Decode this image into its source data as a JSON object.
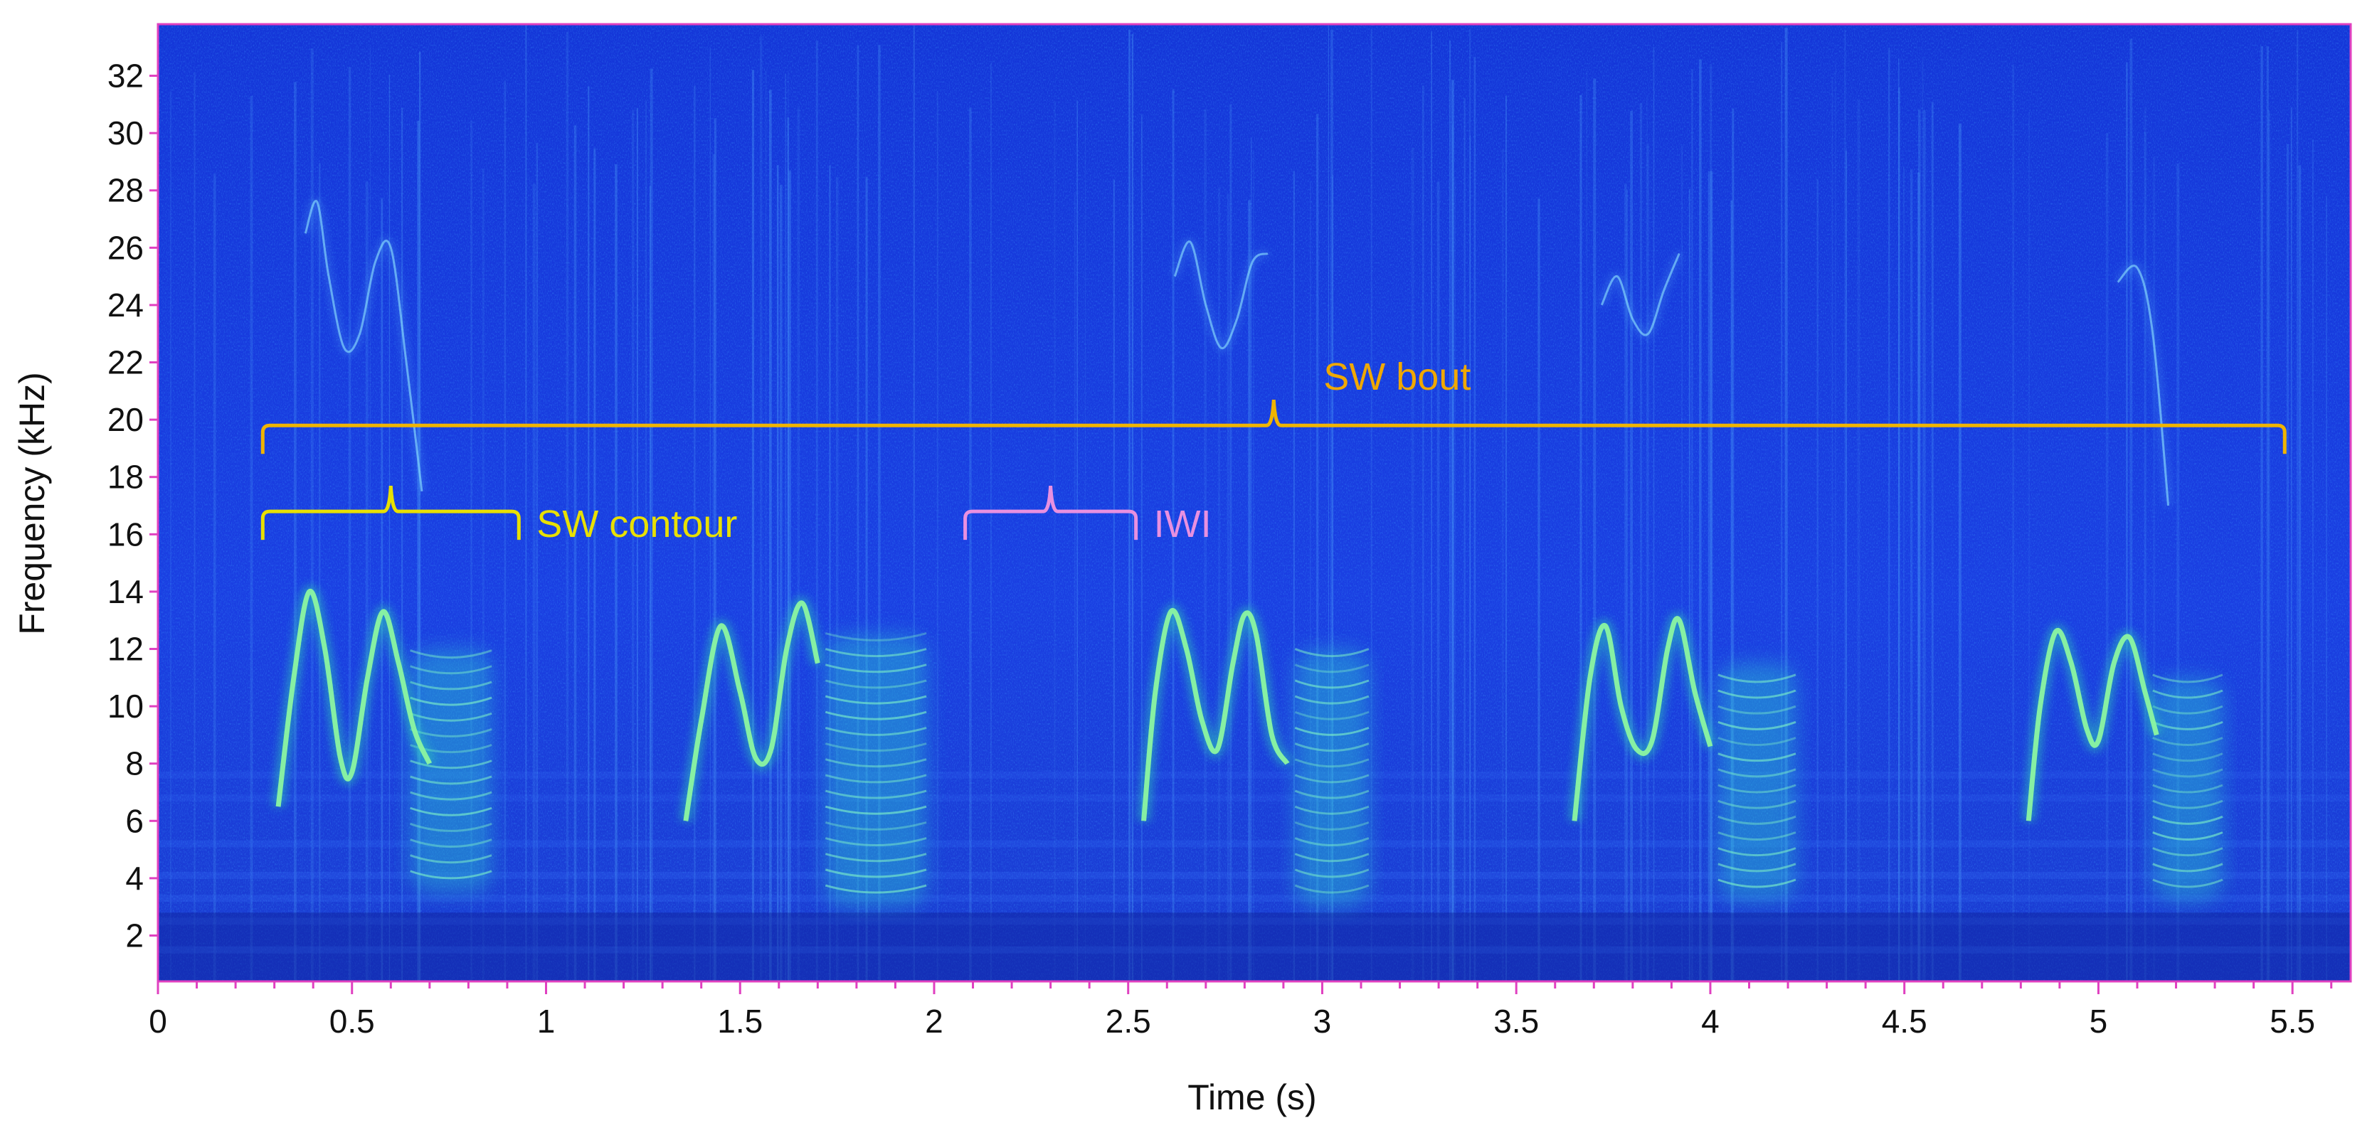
{
  "chart_data": {
    "type": "heatmap",
    "xlabel": "Time (s)",
    "ylabel": "Frequency (kHz)",
    "xlim": [
      0,
      5.65
    ],
    "ylim": [
      0.4,
      33.8
    ],
    "x_ticks": [
      0,
      0.5,
      1,
      1.5,
      2,
      2.5,
      3,
      3.5,
      4,
      4.5,
      5,
      5.5
    ],
    "x_tick_labels": [
      "0",
      "0.5",
      "1",
      "1.5",
      "2",
      "2.5",
      "3",
      "3.5",
      "4",
      "4.5",
      "5",
      "5.5"
    ],
    "y_ticks": [
      2,
      4,
      6,
      8,
      10,
      12,
      14,
      16,
      18,
      20,
      22,
      24,
      26,
      28,
      30,
      32
    ],
    "y_tick_labels": [
      "2",
      "4",
      "6",
      "8",
      "10",
      "12",
      "14",
      "16",
      "18",
      "20",
      "22",
      "24",
      "26",
      "28",
      "30",
      "32"
    ],
    "colors": {
      "background": "#1f3fe0",
      "axis_frame": "#e040c0",
      "bout_bracket": "#f0b400",
      "bout_text": "#f0a800",
      "contour_bracket": "#e8e000",
      "contour_text": "#e8e000",
      "iwi_bracket": "#e890e0",
      "iwi_text": "#e890e0"
    },
    "annotations": [
      {
        "label": "SW bout",
        "x_start": 0.27,
        "x_end": 5.48,
        "y": 19.8
      },
      {
        "label": "SW contour",
        "x_start": 0.27,
        "x_end": 0.93,
        "y": 16.8
      },
      {
        "label": "IWI",
        "x_start": 2.08,
        "x_end": 2.52,
        "y": 16.8
      }
    ],
    "whistles": [
      {
        "x": [
          0.31,
          0.35,
          0.39,
          0.43,
          0.47,
          0.5,
          0.54,
          0.58,
          0.62,
          0.66,
          0.7
        ],
        "y": [
          6.5,
          11,
          14,
          12,
          8.2,
          7.7,
          11,
          13.3,
          11.5,
          9.2,
          8
        ]
      },
      {
        "x": [
          1.36,
          1.4,
          1.45,
          1.5,
          1.54,
          1.58,
          1.62,
          1.66,
          1.7
        ],
        "y": [
          6,
          9.5,
          12.8,
          10.5,
          8.2,
          8.5,
          12,
          13.6,
          11.5
        ]
      },
      {
        "x": [
          2.54,
          2.57,
          2.61,
          2.65,
          2.69,
          2.73,
          2.77,
          2.8,
          2.83,
          2.87,
          2.91
        ],
        "y": [
          6,
          10.5,
          13.3,
          12,
          9.5,
          8.5,
          11.5,
          13.2,
          12.5,
          9,
          8
        ]
      },
      {
        "x": [
          3.65,
          3.69,
          3.73,
          3.77,
          3.81,
          3.85,
          3.89,
          3.92,
          3.96,
          4.0
        ],
        "y": [
          6,
          11,
          12.8,
          10,
          8.5,
          8.8,
          12,
          13,
          10.5,
          8.6
        ]
      },
      {
        "x": [
          4.82,
          4.85,
          4.89,
          4.93,
          4.97,
          5.0,
          5.04,
          5.08,
          5.12,
          5.15
        ],
        "y": [
          6,
          10,
          12.6,
          11.5,
          9.2,
          8.8,
          11.5,
          12.4,
          10.5,
          9
        ]
      }
    ],
    "harmonics": [
      {
        "x": [
          0.38,
          0.41,
          0.44,
          0.48,
          0.52,
          0.56,
          0.6,
          0.64,
          0.68
        ],
        "y": [
          26.5,
          27.6,
          25,
          22.5,
          23,
          25.5,
          26,
          22,
          17.5
        ]
      },
      {
        "x": [
          2.62,
          2.66,
          2.7,
          2.74,
          2.78,
          2.82,
          2.86
        ],
        "y": [
          25,
          26.2,
          24,
          22.5,
          23.5,
          25.5,
          25.8
        ]
      },
      {
        "x": [
          3.72,
          3.76,
          3.8,
          3.84,
          3.88,
          3.92
        ],
        "y": [
          24,
          25,
          23.5,
          23,
          24.5,
          25.8
        ]
      },
      {
        "x": [
          5.05,
          5.1,
          5.14,
          5.18
        ],
        "y": [
          24.8,
          25.3,
          23,
          17
        ]
      }
    ],
    "broadband_bursts": [
      {
        "x_start": 0.65,
        "x_end": 0.86,
        "y_low": 3.5,
        "y_high": 12
      },
      {
        "x_start": 1.72,
        "x_end": 1.98,
        "y_low": 3,
        "y_high": 12.5
      },
      {
        "x_start": 2.93,
        "x_end": 3.12,
        "y_low": 3,
        "y_high": 12
      },
      {
        "x_start": 4.02,
        "x_end": 4.22,
        "y_low": 3.2,
        "y_high": 11.5
      },
      {
        "x_start": 5.14,
        "x_end": 5.32,
        "y_low": 3.2,
        "y_high": 11
      }
    ]
  }
}
